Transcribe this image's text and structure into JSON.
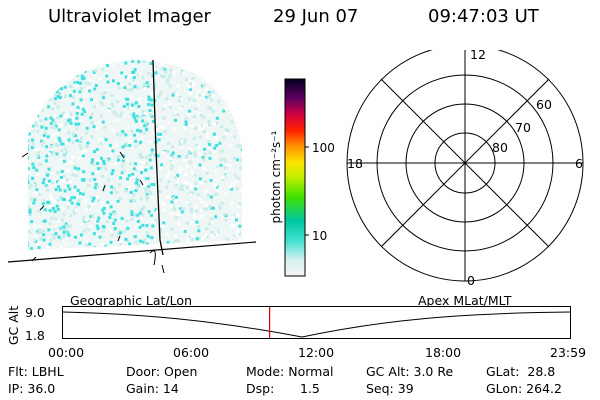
{
  "header": {
    "instrument": "Ultraviolet Imager",
    "date": "29 Jun 07",
    "time": "09:47:03 UT"
  },
  "colorbar": {
    "unit_label": "photon cm⁻²s⁻¹",
    "ticks": [
      "100",
      "10"
    ]
  },
  "polar_plot": {
    "mlt_labels": [
      "12",
      "18",
      "6",
      "0"
    ],
    "lat_labels": [
      "60",
      "70",
      "80"
    ]
  },
  "timeline": {
    "left_title": "Geographic Lat/Lon",
    "right_title": "Apex MLat/MLT",
    "axis_label": "GC Alt",
    "y_ticks": [
      "9.0",
      "1.8"
    ],
    "x_ticks": [
      "00:00",
      "06:00",
      "12:00",
      "18:00",
      "23:59"
    ],
    "marker_time_hours": 9.78
  },
  "status": {
    "row1": {
      "filter": "Flt: LBHL",
      "door": "Door: Open",
      "mode": "Mode: Normal",
      "gc_alt": "GC Alt: 3.0 Re",
      "glat": "GLat:  28.8"
    },
    "row2": {
      "ip": "IP: 36.0",
      "gain": "Gain: 14",
      "dsp_label": "Dsp:",
      "dsp_value": "1.5",
      "seq": "Seq: 39",
      "glon": "GLon: 264.2"
    }
  },
  "colors": {
    "aurora_cyan": "#40e0e0",
    "aurora_light": "#c8ece8",
    "marker_red": "#e00000",
    "line": "#000000"
  }
}
